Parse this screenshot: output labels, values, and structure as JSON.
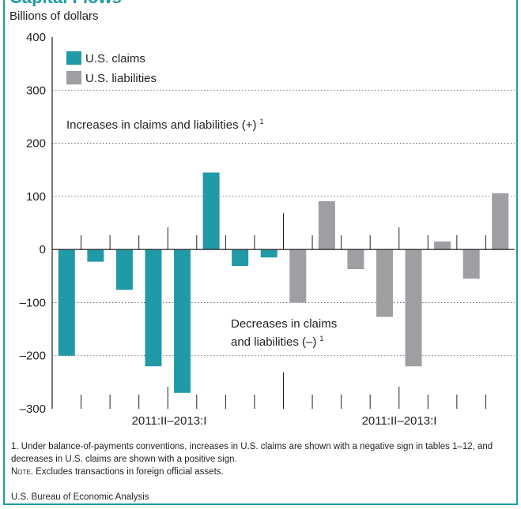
{
  "header": {
    "title": "Capital Flows"
  },
  "unit_label": "Billions of dollars",
  "legend": [
    {
      "label": "U.S. claims",
      "color": "#1f9aa6"
    },
    {
      "label": "U.S. liabilities",
      "color": "#9d9fa2"
    }
  ],
  "annotations": {
    "increases_text": "Increases in claims and liabilities (+)",
    "increases_sup": "1",
    "decreases_line1": "Decreases in claims",
    "decreases_line2": "and liabilities (–)",
    "decreases_sup": "1"
  },
  "period_labels": [
    "2011:II–2013:I",
    "2011:II–2013:I"
  ],
  "footnotes": {
    "note1": "1. Under balance-of-payments conventions, increases in U.S. claims are shown with a negative sign in tables 1–12, and decreases in U.S. claims are shown with a positive sign.",
    "note_label": "Note.",
    "note_text": " Excludes transactions in foreign official assets."
  },
  "source": "U.S. Bureau of Economic Analysis",
  "chart_data": {
    "type": "bar",
    "ylabel": "Billions of dollars",
    "ylim": [
      -300,
      400
    ],
    "yticks": [
      400,
      300,
      200,
      100,
      0,
      -100,
      -200,
      -300
    ],
    "ytick_labels": [
      "400",
      "300",
      "200",
      "100",
      "0",
      "–100",
      "–200",
      "–300"
    ],
    "grid": true,
    "legend_position": "top-left",
    "series": [
      {
        "name": "U.S. claims",
        "color": "#1f9aa6",
        "values": [
          -200,
          -23,
          -76,
          -220,
          -270,
          145,
          -31,
          -15
        ]
      },
      {
        "name": "U.S. liabilities",
        "color": "#9d9fa2",
        "values": [
          -100,
          91,
          -37,
          -127,
          -220,
          15,
          -55,
          106
        ]
      }
    ]
  }
}
